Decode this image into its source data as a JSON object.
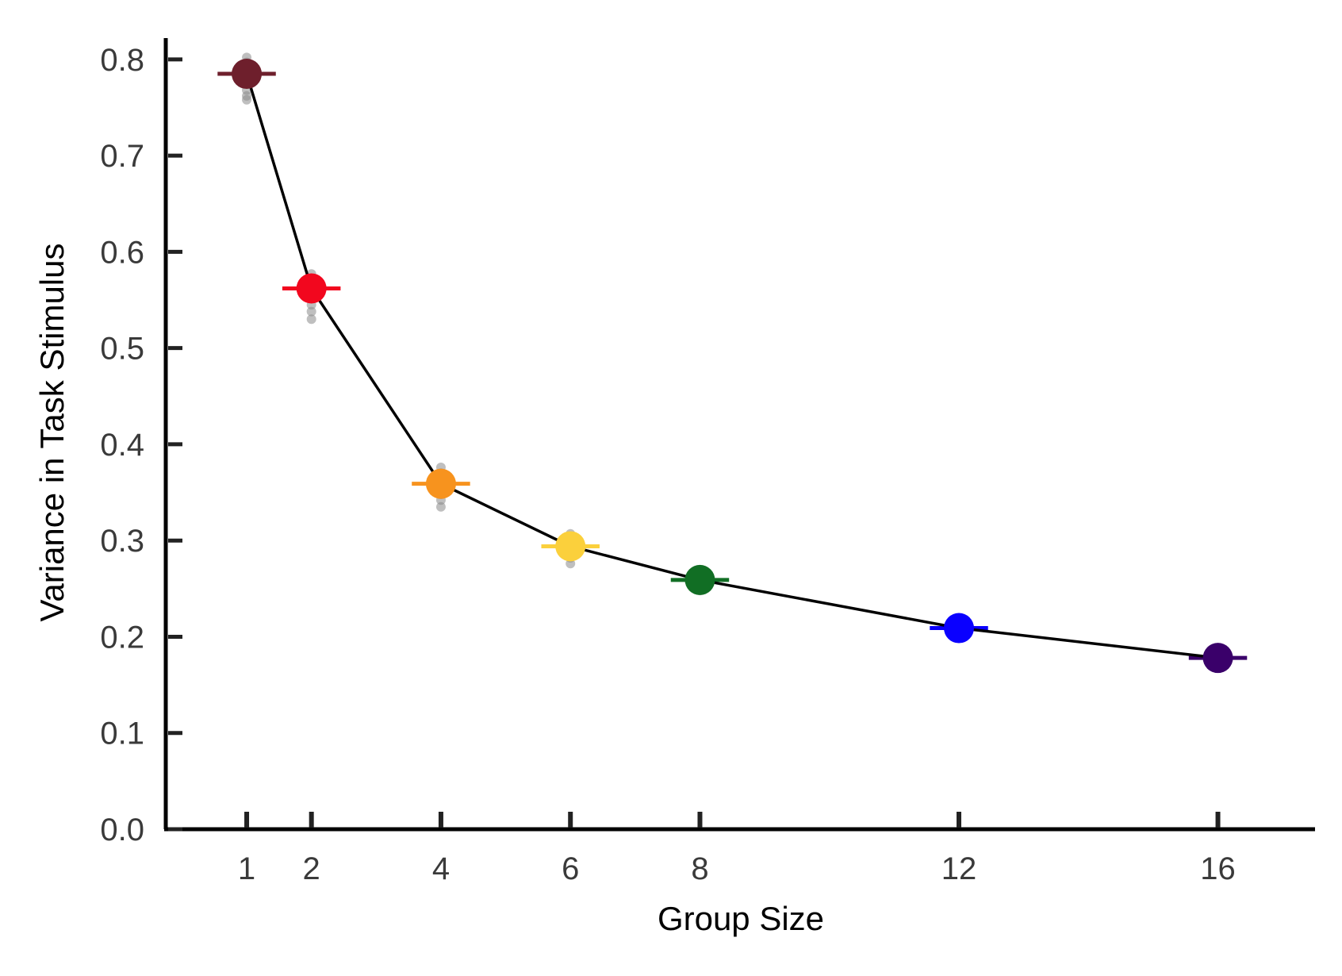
{
  "chart_data": {
    "type": "line",
    "title": "",
    "xlabel": "Group Size",
    "ylabel": "Variance in Task Stimulus",
    "xlim": [
      -0.25,
      17.5
    ],
    "ylim": [
      0,
      0.82
    ],
    "x_ticks": [
      {
        "value": 1,
        "label": "1"
      },
      {
        "value": 2,
        "label": "2"
      },
      {
        "value": 4,
        "label": "4"
      },
      {
        "value": 6,
        "label": "6"
      },
      {
        "value": 8,
        "label": "8"
      },
      {
        "value": 12,
        "label": "12"
      },
      {
        "value": 16,
        "label": "16"
      }
    ],
    "y_ticks": [
      {
        "value": 0.0,
        "label": "0.0"
      },
      {
        "value": 0.1,
        "label": "0.1"
      },
      {
        "value": 0.2,
        "label": "0.2"
      },
      {
        "value": 0.3,
        "label": "0.3"
      },
      {
        "value": 0.4,
        "label": "0.4"
      },
      {
        "value": 0.5,
        "label": "0.5"
      },
      {
        "value": 0.6,
        "label": "0.6"
      },
      {
        "value": 0.7,
        "label": "0.7"
      },
      {
        "value": 0.8,
        "label": "0.8"
      }
    ],
    "grid": false,
    "legend": "none",
    "line_color": "#000000",
    "points": [
      {
        "x": 1,
        "y": 0.785,
        "color": "#6e1f2c",
        "errbar_half_width": 0.45,
        "samples": [
          0.758,
          0.762,
          0.768,
          0.775,
          0.79,
          0.797,
          0.802
        ]
      },
      {
        "x": 2,
        "y": 0.562,
        "color": "#f2071e",
        "errbar_half_width": 0.45,
        "samples": [
          0.53,
          0.538,
          0.545,
          0.552,
          0.57,
          0.577
        ]
      },
      {
        "x": 4,
        "y": 0.359,
        "color": "#f7931e",
        "errbar_half_width": 0.45,
        "samples": [
          0.335,
          0.342,
          0.348,
          0.37,
          0.376
        ]
      },
      {
        "x": 6,
        "y": 0.294,
        "color": "#fbd03c",
        "errbar_half_width": 0.45,
        "samples": [
          0.276,
          0.282,
          0.288,
          0.302,
          0.307
        ]
      },
      {
        "x": 8,
        "y": 0.259,
        "color": "#116e24",
        "errbar_half_width": 0.45,
        "samples": [
          0.248,
          0.253,
          0.263,
          0.267
        ]
      },
      {
        "x": 12,
        "y": 0.209,
        "color": "#0a00ff",
        "errbar_half_width": 0.45,
        "samples": [
          0.204,
          0.213
        ]
      },
      {
        "x": 16,
        "y": 0.178,
        "color": "#3a006a",
        "errbar_half_width": 0.45,
        "samples": [
          0.175,
          0.181
        ]
      }
    ]
  }
}
